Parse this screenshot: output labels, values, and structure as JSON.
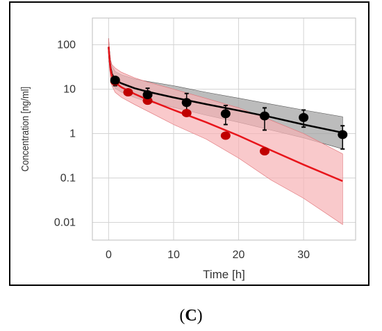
{
  "panel_label": {
    "open": "(",
    "letter": "C",
    "close": ")"
  },
  "chart_data": {
    "type": "line",
    "title": "",
    "xlabel": "Time [h]",
    "ylabel": "Concentration [ng/ml]",
    "xlim": [
      -2.5,
      38
    ],
    "ylim": [
      0.004,
      400
    ],
    "yscale": "log",
    "grid": true,
    "x_ticks": [
      0,
      10,
      20,
      30
    ],
    "x_tick_labels": [
      "0",
      "10",
      "20",
      "30"
    ],
    "y_ticks": [
      100,
      10,
      1,
      0.1,
      0.01
    ],
    "y_tick_labels": [
      "100",
      "10",
      "1",
      "0.1",
      "0.01"
    ],
    "colors": {
      "black_series": "#000000",
      "black_band": "#a6a6a6",
      "red_series": "#e8151b",
      "red_marker": "#c00000",
      "red_band": "#f7b2b5",
      "grid": "#d4d4d4"
    },
    "series": [
      {
        "color_key": "black",
        "observed": {
          "x": [
            1,
            6,
            12,
            18,
            24,
            30,
            36
          ],
          "y": [
            16,
            7.5,
            5,
            2.8,
            2.5,
            2.3,
            0.95
          ],
          "err_low": [
            12,
            5,
            3,
            1.6,
            1.2,
            1.4,
            0.45
          ],
          "err_high": [
            19,
            10.5,
            8,
            4.3,
            3.8,
            3.4,
            1.5
          ]
        },
        "prediction": {
          "x": [
            0,
            0.15,
            0.3,
            0.5,
            1,
            2,
            4,
            6,
            10,
            15,
            20,
            25,
            30,
            36
          ],
          "y": [
            90,
            45,
            30,
            22,
            16,
            13.5,
            10.5,
            8.8,
            6.5,
            4.6,
            3.3,
            2.35,
            1.6,
            1.05
          ]
        },
        "band": {
          "x": [
            0,
            0.15,
            0.3,
            0.5,
            1,
            2,
            4,
            6,
            10,
            15,
            20,
            25,
            30,
            36
          ],
          "low": [
            60,
            30,
            20,
            15,
            10.5,
            8.5,
            6.5,
            5.2,
            3.9,
            2.6,
            1.8,
            1.2,
            0.8,
            0.45
          ],
          "high": [
            140,
            70,
            45,
            34,
            25,
            21,
            17,
            15,
            12,
            8.5,
            6.3,
            4.6,
            3.4,
            2.4
          ]
        }
      },
      {
        "color_key": "red",
        "observed": {
          "x": [
            1,
            3,
            6,
            12,
            18,
            24
          ],
          "y": [
            15,
            8.5,
            5.5,
            2.9,
            0.9,
            0.4
          ]
        },
        "prediction": {
          "x": [
            0,
            0.15,
            0.3,
            0.5,
            1,
            2,
            4,
            6,
            10,
            15,
            20,
            25,
            30,
            36
          ],
          "y": [
            90,
            45,
            28,
            20,
            14,
            11,
            7.8,
            5.8,
            3.4,
            1.8,
            0.9,
            0.42,
            0.2,
            0.085
          ]
        },
        "band": {
          "x": [
            0,
            0.15,
            0.3,
            0.5,
            1,
            2,
            4,
            6,
            10,
            15,
            20,
            25,
            30,
            36
          ],
          "low": [
            60,
            28,
            17,
            12,
            8.5,
            6.5,
            4.5,
            3.2,
            1.6,
            0.75,
            0.28,
            0.09,
            0.035,
            0.009
          ],
          "high": [
            140,
            70,
            45,
            36,
            30,
            24,
            18,
            14.5,
            10,
            6.2,
            3.8,
            2,
            1,
            0.35
          ]
        }
      }
    ]
  }
}
